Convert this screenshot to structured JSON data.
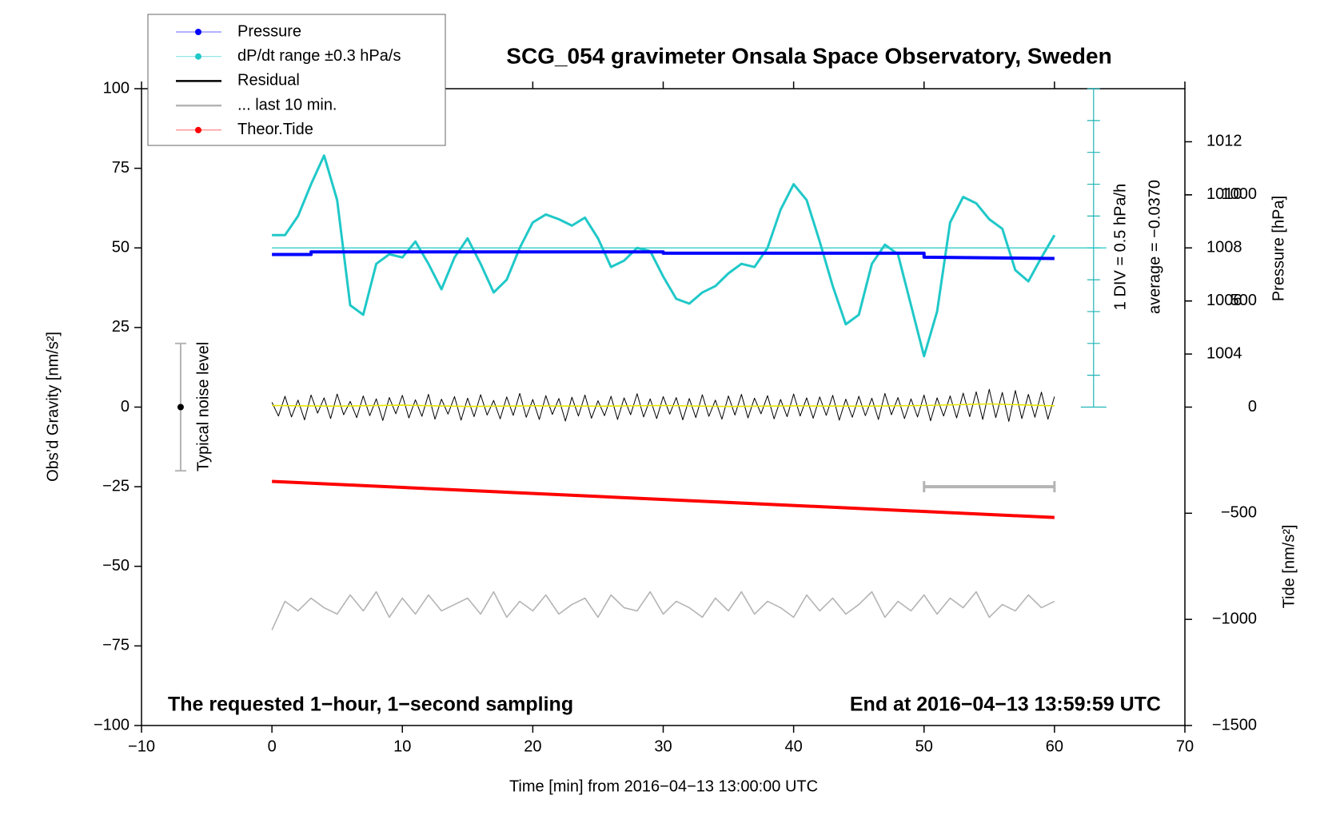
{
  "chart_data": {
    "type": "line",
    "title": "SCG_054 gravimeter Onsala Space Observatory, Sweden",
    "xlabel": "Time [min] from 2016−04−13 13:00:00 UTC",
    "ylabel": "Obs’d Gravity [nm/s²]",
    "y2label": "Pressure [hPa]",
    "y3label": "Tide [nm/s²]",
    "note_left": "The requested 1−hour, 1−second sampling",
    "note_right": "End at 2016−04−13 13:59:59 UTC",
    "xlim": [
      -10,
      70
    ],
    "xticks": [
      {
        "value": -10,
        "label": "−10"
      },
      0,
      10,
      20,
      30,
      40,
      50,
      60,
      70
    ],
    "ylim": [
      -100,
      100
    ],
    "yticks": [
      {
        "value": -100,
        "label": "−100"
      },
      {
        "value": -75,
        "label": "−75"
      },
      {
        "value": -50,
        "label": "−50"
      },
      {
        "value": -25,
        "label": "−25"
      },
      0,
      25,
      50,
      75,
      100
    ],
    "y2lim": [
      1002,
      1014
    ],
    "y2ticks": [
      1004,
      1006,
      1008,
      1010,
      1012
    ],
    "y3lim": [
      -1500,
      1500
    ],
    "y3ticks": [
      {
        "value": -1500,
        "label": "−1500"
      },
      {
        "value": -1000,
        "label": "−1000"
      },
      {
        "value": -500,
        "label": "−500"
      },
      0,
      500,
      1000
    ],
    "dpdt_scale": {
      "label": "1 DIV = 0.5 hPa/h",
      "average_label": "average = −0.0370",
      "x": 63,
      "ylim": [
        0,
        100
      ],
      "ticks": [
        0,
        10,
        20,
        30,
        40,
        50,
        60,
        70,
        80,
        90,
        100
      ],
      "average_level": 50
    },
    "noise_level": {
      "label": "Typical noise level",
      "x": -7,
      "range": [
        -20,
        20
      ],
      "center": 0
    },
    "window_bar": {
      "x": [
        50,
        60
      ],
      "y": -25
    },
    "series": [
      {
        "name": "Pressure",
        "color": "#0000ff",
        "axis": "y2",
        "x": [
          0,
          3,
          3,
          30,
          30,
          50,
          50,
          60
        ],
        "values": [
          1007.75,
          1007.75,
          1007.85,
          1007.85,
          1007.8,
          1007.8,
          1007.65,
          1007.6
        ]
      },
      {
        "name": "dP/dt range ±0.3 hPa/s",
        "color": "#20c8c8",
        "axis": "y",
        "x": [
          0,
          1,
          2,
          3,
          4,
          5,
          6,
          7,
          8,
          9,
          10,
          11,
          12,
          13,
          14,
          15,
          16,
          17,
          18,
          19,
          20,
          21,
          22,
          23,
          24,
          25,
          26,
          27,
          28,
          29,
          30,
          31,
          32,
          33,
          34,
          35,
          36,
          37,
          38,
          39,
          40,
          41,
          42,
          43,
          44,
          45,
          46,
          47,
          48,
          49,
          50,
          51,
          52,
          53,
          54,
          55,
          56,
          57,
          58,
          59,
          60
        ],
        "values": [
          54,
          54,
          60,
          70,
          79,
          65,
          32,
          29,
          45,
          48,
          47,
          52,
          45,
          37,
          47,
          53,
          45,
          36,
          40,
          50,
          58,
          60.5,
          59,
          57,
          59.5,
          53,
          44,
          46,
          50,
          49,
          41,
          34,
          32.5,
          36,
          38,
          42,
          45,
          44,
          50,
          62,
          70,
          65,
          52,
          38,
          26,
          29,
          45,
          51,
          48,
          32,
          16,
          30,
          58,
          66,
          64,
          59,
          56,
          43,
          39.5,
          47,
          54
        ]
      },
      {
        "name": "Residual",
        "color": "#000000",
        "axis": "y",
        "x": [
          0,
          0.5,
          1,
          1.5,
          2,
          2.5,
          3,
          3.5,
          4,
          4.5,
          5,
          5.5,
          6,
          6.5,
          7,
          7.5,
          8,
          8.5,
          9,
          9.5,
          10,
          10.5,
          11,
          11.5,
          12,
          12.5,
          13,
          13.5,
          14,
          14.5,
          15,
          15.5,
          16,
          16.5,
          17,
          17.5,
          18,
          18.5,
          19,
          19.5,
          20,
          20.5,
          21,
          21.5,
          22,
          22.5,
          23,
          23.5,
          24,
          24.5,
          25,
          25.5,
          26,
          26.5,
          27,
          27.5,
          28,
          28.5,
          29,
          29.5,
          30,
          30.5,
          31,
          31.5,
          32,
          32.5,
          33,
          33.5,
          34,
          34.5,
          35,
          35.5,
          36,
          36.5,
          37,
          37.5,
          38,
          38.5,
          39,
          39.5,
          40,
          40.5,
          41,
          41.5,
          42,
          42.5,
          43,
          43.5,
          44,
          44.5,
          45,
          45.5,
          46,
          46.5,
          47,
          47.5,
          48,
          48.5,
          49,
          49.5,
          50,
          50.5,
          51,
          51.5,
          52,
          52.5,
          53,
          53.5,
          54,
          54.5,
          55,
          55.5,
          56,
          56.5,
          57,
          57.5,
          58,
          58.5,
          59,
          59.5,
          60
        ],
        "values": [
          1.5,
          -2.8,
          3.4,
          -3.1,
          2.2,
          -4.0,
          3.8,
          -1.9,
          2.9,
          -3.6,
          4.1,
          -2.4,
          1.8,
          -3.3,
          3.5,
          -2.7,
          2.6,
          -4.2,
          3.0,
          -2.1,
          3.7,
          -3.4,
          2.3,
          -2.9,
          4.0,
          -3.8,
          2.5,
          -2.2,
          3.3,
          -4.1,
          2.8,
          -3.0,
          3.9,
          -2.5,
          2.1,
          -3.7,
          3.2,
          -2.6,
          4.3,
          -3.2,
          2.4,
          -3.9,
          3.6,
          -2.3,
          2.7,
          -4.4,
          3.1,
          -2.8,
          3.8,
          -3.5,
          2.0,
          -2.7,
          3.4,
          -3.9,
          2.9,
          -2.4,
          4.2,
          -3.1,
          2.6,
          -3.6,
          3.3,
          -2.2,
          3.0,
          -4.0,
          2.7,
          -3.3,
          3.9,
          -2.9,
          2.2,
          -3.8,
          3.5,
          -2.5,
          4.0,
          -3.4,
          2.8,
          -2.1,
          3.6,
          -3.7,
          2.4,
          -3.0,
          4.1,
          -2.8,
          2.9,
          -3.5,
          3.2,
          -2.6,
          3.7,
          -4.1,
          2.5,
          -3.2,
          3.4,
          -2.7,
          2.8,
          -3.9,
          4.3,
          -2.4,
          3.0,
          -3.6,
          2.6,
          -3.1,
          3.8,
          -4.3,
          2.9,
          -2.8,
          3.5,
          -3.4,
          4.4,
          -3.0,
          4.8,
          -3.9,
          5.6,
          -3.3,
          4.6,
          -4.5,
          5.2,
          -3.6,
          4.0,
          -3.2,
          4.7,
          -3.8,
          3.3
        ]
      },
      {
        "color": "#e6e600",
        "axis": "y",
        "x": [
          0,
          5,
          10,
          15,
          20,
          25,
          30,
          35,
          40,
          45,
          50,
          55,
          60
        ],
        "values": [
          0.5,
          0.3,
          0.6,
          0.2,
          0.4,
          0.3,
          0.5,
          0.2,
          0.4,
          0.3,
          0.5,
          1.0,
          0.4
        ]
      },
      {
        "name": "... last 10 min.",
        "color": "#b4b4b4",
        "axis": "y",
        "x": [
          0,
          1,
          2,
          3,
          4,
          5,
          6,
          7,
          8,
          9,
          10,
          11,
          12,
          13,
          14,
          15,
          16,
          17,
          18,
          19,
          20,
          21,
          22,
          23,
          24,
          25,
          26,
          27,
          28,
          29,
          30,
          31,
          32,
          33,
          34,
          35,
          36,
          37,
          38,
          39,
          40,
          41,
          42,
          43,
          44,
          45,
          46,
          47,
          48,
          49,
          50,
          51,
          52,
          53,
          54,
          55,
          56,
          57,
          58,
          59,
          60
        ],
        "values": [
          -70,
          -61,
          -64,
          -60,
          -63,
          -65,
          -59,
          -64,
          -58,
          -66,
          -60,
          -65,
          -59,
          -64,
          -62,
          -60,
          -65,
          -58,
          -66,
          -61,
          -64,
          -59,
          -65,
          -62,
          -60,
          -66,
          -59,
          -63,
          -64,
          -58,
          -65,
          -61,
          -63,
          -66,
          -60,
          -64,
          -58,
          -65,
          -61,
          -63,
          -66,
          -59,
          -64,
          -60,
          -65,
          -62,
          -58,
          -66,
          -61,
          -64,
          -59,
          -65,
          -60,
          -63,
          -58,
          -66,
          -62,
          -64,
          -59,
          -63,
          -61
        ]
      },
      {
        "name": "Theor.Tide",
        "color": "#ff0000",
        "axis": "y3",
        "x": [
          0,
          60
        ],
        "values": [
          -350,
          -520
        ]
      }
    ]
  }
}
